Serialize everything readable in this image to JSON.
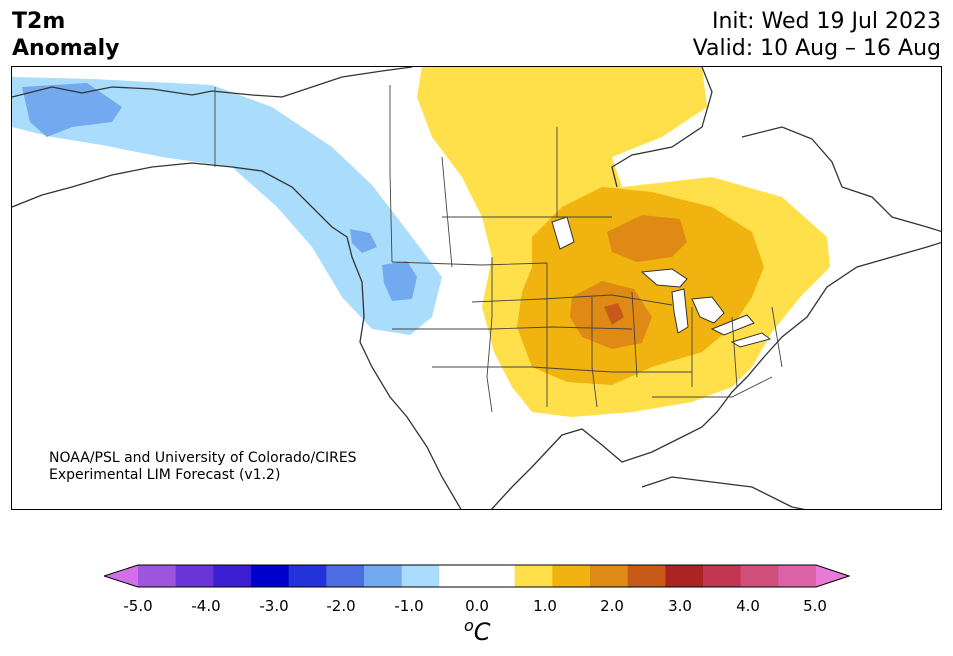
{
  "header": {
    "title_line1": "T2m",
    "title_line2": "Anomaly",
    "init": "Init: Wed 19 Jul 2023",
    "valid": "Valid: 10 Aug – 16 Aug"
  },
  "credit": {
    "line1": "NOAA/PSL and University of Colorado/CIRES",
    "line2": "Experimental LIM Forecast (v1.2)"
  },
  "colorbar": {
    "colors": [
      "#d36fe8",
      "#9c55de",
      "#6a35d8",
      "#3a1ed0",
      "#0000cd",
      "#2332d9",
      "#4d6de3",
      "#72a9ef",
      "#aadcfb",
      "#ffffff",
      "#ffffff",
      "#ffe04a",
      "#f0b30f",
      "#df8a14",
      "#c85a19",
      "#ab2423",
      "#c23550",
      "#d14f7c",
      "#dd62a6",
      "#e879d8"
    ],
    "tick_labels": [
      "-5.0",
      "-4.0",
      "-3.0",
      "-2.0",
      "-1.0",
      "0.0",
      "1.0",
      "2.0",
      "3.0",
      "4.0",
      "5.0"
    ],
    "unit_base": "C",
    "unit_sup": "o"
  },
  "map": {
    "land_color": "#ffffff",
    "border_color": "#333333",
    "anomaly_regions": [
      {
        "name": "cool-1",
        "color": "#aadcfb"
      },
      {
        "name": "cool-2",
        "color": "#72a9ef"
      },
      {
        "name": "warm-1",
        "color": "#ffe04a"
      },
      {
        "name": "warm-2",
        "color": "#f0b30f"
      },
      {
        "name": "warm-3",
        "color": "#df8a14"
      },
      {
        "name": "warm-4",
        "color": "#c85a19"
      }
    ]
  }
}
